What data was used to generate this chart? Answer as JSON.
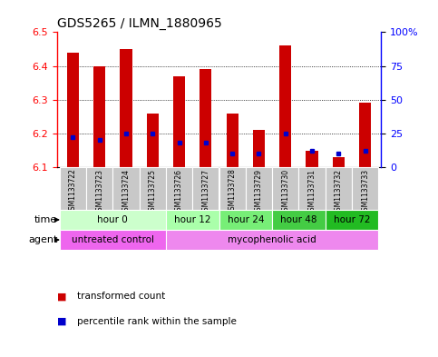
{
  "title": "GDS5265 / ILMN_1880965",
  "samples": [
    "GSM1133722",
    "GSM1133723",
    "GSM1133724",
    "GSM1133725",
    "GSM1133726",
    "GSM1133727",
    "GSM1133728",
    "GSM1133729",
    "GSM1133730",
    "GSM1133731",
    "GSM1133732",
    "GSM1133733"
  ],
  "transformed_count": [
    6.44,
    6.4,
    6.45,
    6.26,
    6.37,
    6.39,
    6.26,
    6.21,
    6.46,
    6.15,
    6.13,
    6.29
  ],
  "percentile_rank": [
    22,
    20,
    25,
    25,
    18,
    18,
    10,
    10,
    25,
    12,
    10,
    12
  ],
  "ylim": [
    6.1,
    6.5
  ],
  "yticks_left": [
    6.1,
    6.2,
    6.3,
    6.4,
    6.5
  ],
  "yticks_right": [
    0,
    25,
    50,
    75,
    100
  ],
  "bar_bottom": 6.1,
  "bar_color": "#cc0000",
  "blue_color": "#0000cc",
  "time_groups": [
    {
      "label": "hour 0",
      "start": 0,
      "end": 3,
      "color": "#ccffcc"
    },
    {
      "label": "hour 12",
      "start": 4,
      "end": 5,
      "color": "#aaffaa"
    },
    {
      "label": "hour 24",
      "start": 6,
      "end": 7,
      "color": "#77ee77"
    },
    {
      "label": "hour 48",
      "start": 8,
      "end": 9,
      "color": "#44cc44"
    },
    {
      "label": "hour 72",
      "start": 10,
      "end": 11,
      "color": "#22bb22"
    }
  ],
  "agent_groups": [
    {
      "label": "untreated control",
      "start": 0,
      "end": 3,
      "color": "#ee66ee"
    },
    {
      "label": "mycophenolic acid",
      "start": 4,
      "end": 11,
      "color": "#ee88ee"
    }
  ],
  "legend_red": "transformed count",
  "legend_blue": "percentile rank within the sample",
  "sample_bg_color": "#c8c8c8",
  "fig_width": 4.83,
  "fig_height": 3.93,
  "dpi": 100
}
